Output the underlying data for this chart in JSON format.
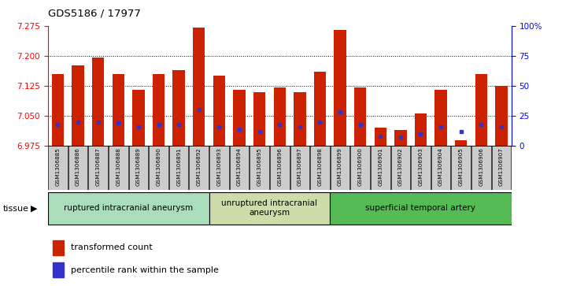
{
  "title": "GDS5186 / 17977",
  "samples": [
    "GSM1306885",
    "GSM1306886",
    "GSM1306887",
    "GSM1306888",
    "GSM1306889",
    "GSM1306890",
    "GSM1306891",
    "GSM1306892",
    "GSM1306893",
    "GSM1306894",
    "GSM1306895",
    "GSM1306896",
    "GSM1306897",
    "GSM1306898",
    "GSM1306899",
    "GSM1306900",
    "GSM1306901",
    "GSM1306902",
    "GSM1306903",
    "GSM1306904",
    "GSM1306905",
    "GSM1306906",
    "GSM1306907"
  ],
  "transformed_count": [
    7.155,
    7.175,
    7.195,
    7.155,
    7.115,
    7.155,
    7.165,
    7.27,
    7.15,
    7.115,
    7.11,
    7.12,
    7.11,
    7.16,
    7.265,
    7.12,
    7.02,
    7.015,
    7.055,
    7.115,
    6.99,
    7.155,
    7.125
  ],
  "percentile_rank": [
    18,
    20,
    20,
    19,
    16,
    18,
    18,
    30,
    16,
    14,
    12,
    18,
    16,
    20,
    28,
    18,
    8,
    7,
    10,
    16,
    12,
    18,
    16
  ],
  "ylim_left": [
    6.975,
    7.275
  ],
  "ylim_right": [
    0,
    100
  ],
  "yticks_left": [
    6.975,
    7.05,
    7.125,
    7.2,
    7.275
  ],
  "yticks_right": [
    0,
    25,
    50,
    75,
    100
  ],
  "ytick_labels_right": [
    "0",
    "25",
    "50",
    "75",
    "100%"
  ],
  "bar_color": "#cc2200",
  "blue_color": "#3333cc",
  "bar_base": 6.975,
  "groups": [
    {
      "label": "ruptured intracranial aneurysm",
      "start": 0,
      "end": 8,
      "color": "#aaddbb"
    },
    {
      "label": "unruptured intracranial\naneurysm",
      "start": 8,
      "end": 14,
      "color": "#ccddaa"
    },
    {
      "label": "superficial temporal artery",
      "start": 14,
      "end": 23,
      "color": "#55bb55"
    }
  ],
  "tissue_label": "tissue",
  "legend_items": [
    {
      "color": "#cc2200",
      "label": "transformed count"
    },
    {
      "color": "#3333cc",
      "label": "percentile rank within the sample"
    }
  ],
  "xtick_bg": "#cccccc",
  "plot_bg": "#ffffff"
}
